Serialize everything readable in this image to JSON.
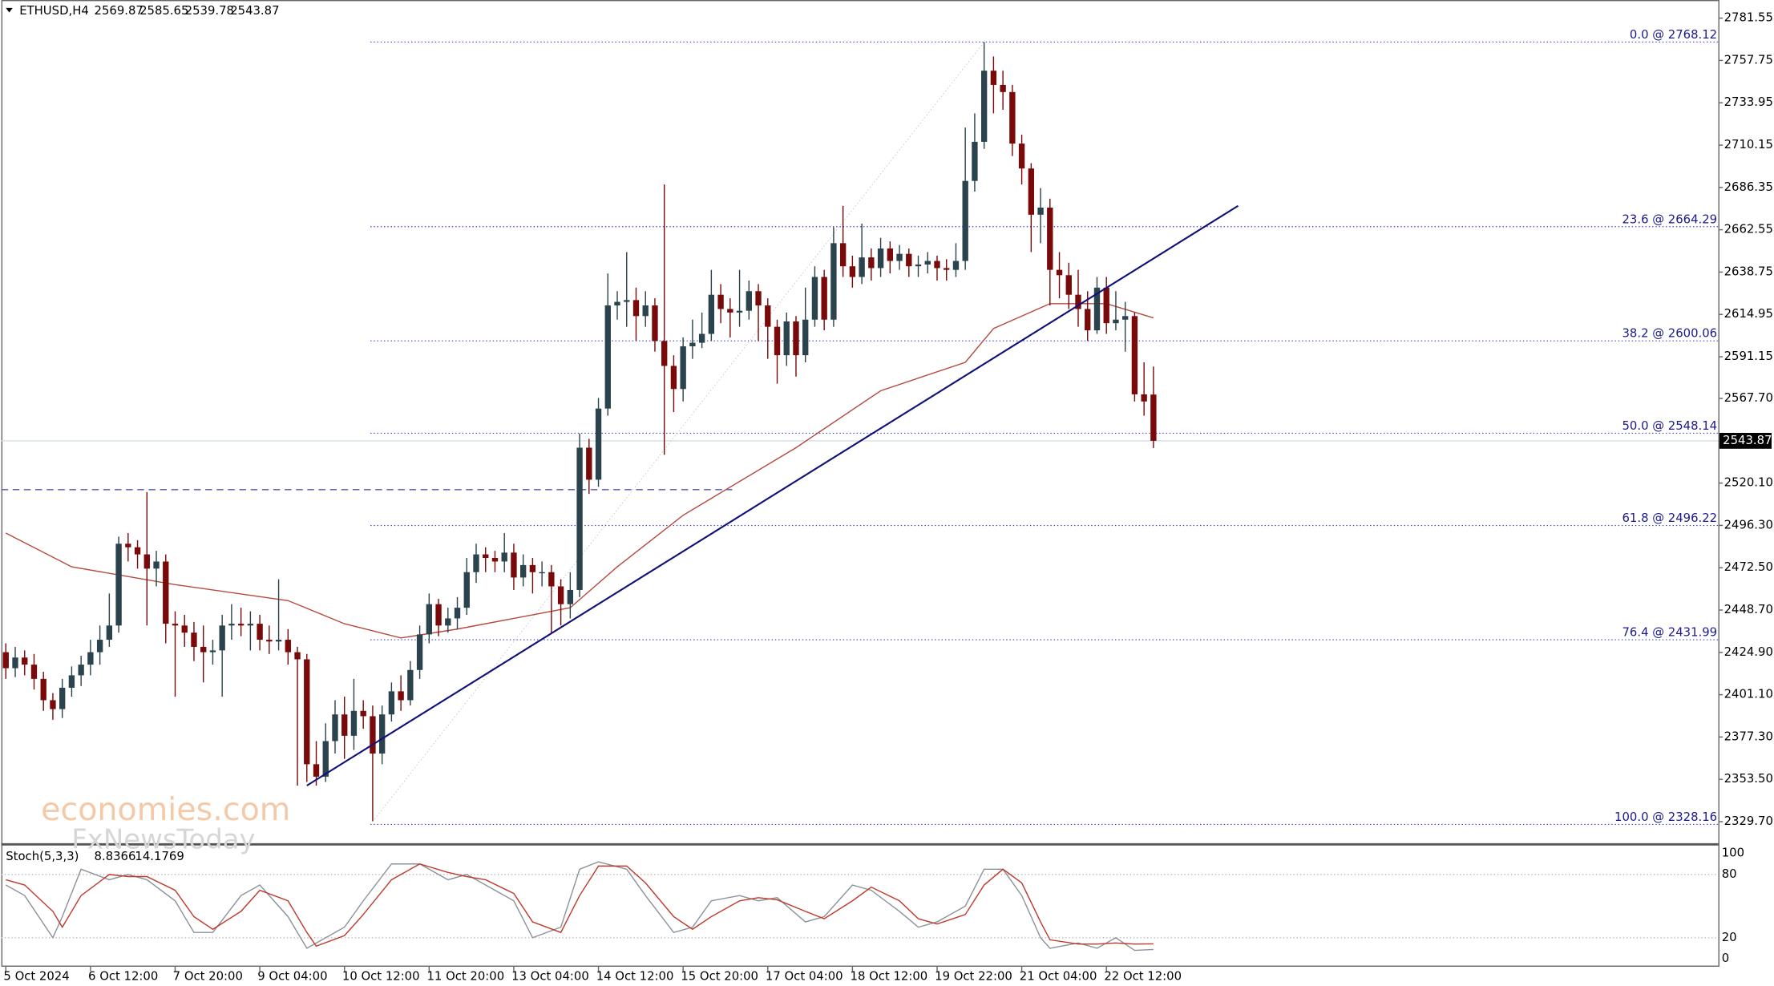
{
  "chart_data": {
    "type": "candlestick",
    "symbol": "ETHUSD,H4",
    "categories": [
      "5 Oct 2024",
      null,
      null,
      null,
      null,
      null,
      null,
      null,
      null,
      "6 Oct 12:00",
      null,
      null,
      null,
      null,
      null,
      null,
      null,
      null,
      "7 Oct 20:00",
      null,
      null,
      null,
      null,
      null,
      null,
      null,
      null,
      "9 Oct 04:00",
      null,
      null,
      null,
      null,
      null,
      null,
      null,
      null,
      "10 Oct 12:00",
      null,
      null,
      null,
      null,
      null,
      null,
      null,
      null,
      "11 Oct 20:00",
      null,
      null,
      null,
      null,
      null,
      null,
      null,
      null,
      "13 Oct 04:00",
      null,
      null,
      null,
      null,
      null,
      null,
      null,
      null,
      "14 Oct 12:00",
      null,
      null,
      null,
      null,
      null,
      null,
      null,
      null,
      "15 Oct 20:00",
      null,
      null,
      null,
      null,
      null,
      null,
      null,
      null,
      "17 Oct 04:00",
      null,
      null,
      null,
      null,
      null,
      null,
      null,
      null,
      "18 Oct 12:00",
      null,
      null,
      null,
      null,
      null,
      null,
      null,
      null,
      "19 Oct 22:00",
      null,
      null,
      null,
      null,
      null,
      null,
      null,
      null,
      "21 Oct 04:00",
      null,
      null,
      null,
      null,
      null,
      null,
      null,
      null,
      "22 Oct 12:00",
      null,
      null,
      null,
      null,
      null
    ],
    "open": [
      2425,
      2416,
      2422,
      2418,
      2410,
      2398,
      2393,
      2405,
      2412,
      2418,
      2425,
      2432,
      2440,
      2486,
      2484,
      2480,
      2472,
      2476,
      2441,
      2440,
      2436,
      2428,
      2425,
      2426,
      2440,
      2441,
      2440,
      2441,
      2432,
      2431,
      2432,
      2425,
      2421,
      2362,
      2355,
      2375,
      2390,
      2378,
      2392,
      2389,
      2368,
      2390,
      2403,
      2398,
      2415,
      2435,
      2452,
      2440,
      2444,
      2450,
      2470,
      2480,
      2478,
      2476,
      2481,
      2467,
      2474,
      2470,
      2470,
      2462,
      2452,
      2460,
      2540,
      2522,
      2562,
      2620,
      2622,
      2623,
      2614,
      2620,
      2600,
      2586,
      2573,
      2597,
      2599,
      2604,
      2626,
      2618,
      2616,
      2617,
      2628,
      2620,
      2608,
      2592,
      2611,
      2592,
      2612,
      2636,
      2612,
      2655,
      2642,
      2636,
      2647,
      2641,
      2652,
      2645,
      2649,
      2642,
      2643,
      2645,
      2641,
      2640,
      2645,
      2690,
      2712,
      2752,
      2744,
      2740,
      2711,
      2697,
      2671,
      2675,
      2640,
      2637,
      2626,
      2618,
      2606,
      2630,
      2610,
      2612,
      2614,
      2570,
      2569.87
    ],
    "high": [
      2430,
      2428,
      2426,
      2424,
      2414,
      2402,
      2410,
      2417,
      2423,
      2432,
      2440,
      2458,
      2490,
      2492,
      2488,
      2515,
      2482,
      2480,
      2448,
      2446,
      2442,
      2440,
      2432,
      2446,
      2452,
      2450,
      2448,
      2446,
      2440,
      2466,
      2438,
      2428,
      2424,
      2375,
      2385,
      2398,
      2400,
      2410,
      2398,
      2395,
      2395,
      2408,
      2412,
      2420,
      2440,
      2458,
      2455,
      2450,
      2456,
      2478,
      2486,
      2484,
      2482,
      2492,
      2486,
      2480,
      2478,
      2476,
      2474,
      2466,
      2470,
      2548,
      2545,
      2568,
      2638,
      2628,
      2650,
      2630,
      2628,
      2624,
      2688,
      2592,
      2602,
      2612,
      2616,
      2640,
      2632,
      2624,
      2640,
      2634,
      2632,
      2624,
      2612,
      2616,
      2614,
      2630,
      2642,
      2640,
      2664,
      2676,
      2648,
      2666,
      2652,
      2658,
      2656,
      2654,
      2652,
      2648,
      2650,
      2648,
      2646,
      2655,
      2720,
      2728,
      2768,
      2760,
      2752,
      2744,
      2716,
      2700,
      2686,
      2680,
      2650,
      2644,
      2640,
      2628,
      2636,
      2636,
      2628,
      2622,
      2616,
      2588,
      2585.65
    ],
    "low": [
      2410,
      2411,
      2412,
      2404,
      2392,
      2387,
      2388,
      2400,
      2406,
      2412,
      2418,
      2428,
      2436,
      2476,
      2472,
      2440,
      2462,
      2430,
      2400,
      2428,
      2420,
      2408,
      2418,
      2400,
      2432,
      2434,
      2426,
      2426,
      2424,
      2426,
      2418,
      2350,
      2352,
      2350,
      2352,
      2368,
      2365,
      2370,
      2382,
      2330,
      2362,
      2386,
      2392,
      2395,
      2410,
      2430,
      2434,
      2436,
      2438,
      2446,
      2464,
      2470,
      2470,
      2470,
      2460,
      2462,
      2458,
      2462,
      2436,
      2440,
      2444,
      2456,
      2514,
      2518,
      2558,
      2612,
      2608,
      2600,
      2608,
      2594,
      2536,
      2560,
      2566,
      2590,
      2596,
      2600,
      2610,
      2602,
      2608,
      2612,
      2600,
      2590,
      2576,
      2586,
      2580,
      2588,
      2608,
      2606,
      2608,
      2636,
      2630,
      2632,
      2634,
      2636,
      2638,
      2640,
      2636,
      2636,
      2638,
      2634,
      2634,
      2636,
      2640,
      2684,
      2708,
      2728,
      2730,
      2704,
      2688,
      2650,
      2655,
      2620,
      2624,
      2618,
      2608,
      2600,
      2604,
      2604,
      2606,
      2594,
      2566,
      2558,
      2539.78
    ],
    "close": [
      2416,
      2422,
      2418,
      2410,
      2398,
      2393,
      2405,
      2412,
      2418,
      2425,
      2432,
      2440,
      2486,
      2484,
      2480,
      2472,
      2476,
      2441,
      2440,
      2436,
      2428,
      2425,
      2426,
      2440,
      2441,
      2440,
      2441,
      2432,
      2431,
      2432,
      2425,
      2421,
      2362,
      2355,
      2375,
      2390,
      2378,
      2392,
      2389,
      2368,
      2390,
      2403,
      2398,
      2415,
      2435,
      2452,
      2440,
      2444,
      2450,
      2470,
      2480,
      2478,
      2476,
      2481,
      2467,
      2474,
      2470,
      2470,
      2462,
      2452,
      2460,
      2540,
      2522,
      2562,
      2620,
      2622,
      2623,
      2614,
      2620,
      2600,
      2586,
      2573,
      2597,
      2599,
      2604,
      2626,
      2618,
      2616,
      2617,
      2628,
      2620,
      2608,
      2592,
      2611,
      2592,
      2612,
      2636,
      2612,
      2655,
      2642,
      2636,
      2647,
      2641,
      2652,
      2645,
      2649,
      2642,
      2643,
      2645,
      2641,
      2640,
      2645,
      2690,
      2712,
      2752,
      2744,
      2740,
      2711,
      2697,
      2671,
      2675,
      2640,
      2637,
      2626,
      2618,
      2606,
      2630,
      2610,
      2612,
      2614,
      2570,
      2566,
      2543.87
    ],
    "up_color": "#2b434c",
    "down_color": "#7a0a0a",
    "ylim": [
      2329.7,
      2781.55
    ],
    "yticks": [
      2781.55,
      2757.75,
      2733.95,
      2710.15,
      2686.35,
      2662.55,
      2638.75,
      2614.95,
      2591.15,
      {
        "value": 2567.7,
        "label": "2567.70"
      },
      {
        "value": 2520.1,
        "label": "2520.10"
      },
      {
        "value": 2496.3,
        "label": "2496.30"
      },
      {
        "value": 2472.5,
        "label": "2472.50"
      },
      {
        "value": 2448.7,
        "label": "2448.70"
      },
      {
        "value": 2424.9,
        "label": "2424.90"
      },
      {
        "value": 2401.1,
        "label": "2401.10"
      },
      {
        "value": 2377.3,
        "label": "2377.30"
      },
      {
        "value": 2353.5,
        "label": "2353.50"
      },
      {
        "value": 2329.7,
        "label": "2329.70"
      }
    ],
    "fib_levels": [
      {
        "value": 2768.12,
        "label": "0.0 @ 2768.12"
      },
      {
        "value": 2664.29,
        "label": "23.6 @ 2664.29"
      },
      {
        "value": 2600.06,
        "label": "38.2 @ 2600.06"
      },
      {
        "value": 2548.14,
        "label": "50.0 @ 2548.14"
      },
      {
        "value": 2496.22,
        "label": "61.8 @ 2496.22"
      },
      {
        "value": 2431.99,
        "label": "76.4 @ 2431.99"
      },
      {
        "value": 2328.16,
        "label": "100.0 @ 2328.16"
      }
    ],
    "fib_color": "#3a3ad0",
    "dashed_level": 2516.4,
    "ma": {
      "color": "#b54a3e",
      "x": [
        0,
        7,
        18,
        30,
        36,
        42,
        48,
        54,
        60,
        65,
        72,
        84,
        93,
        102,
        105,
        111,
        117,
        122
      ],
      "values": [
        2492,
        2473,
        2463,
        2454,
        2441,
        2433,
        2438,
        2444,
        2450,
        2473,
        2502,
        2540,
        2572,
        2588,
        2607,
        2621,
        2621,
        2613
      ]
    },
    "trendline": {
      "color": "#10107a",
      "x": [
        32,
        131
      ],
      "values": [
        2350,
        2676
      ]
    },
    "stoch": {
      "title": "Stoch(5,3,3)",
      "ylim": [
        0,
        100
      ],
      "yticks": [
        100,
        80,
        20,
        0
      ],
      "x": [
        0,
        2,
        5,
        6,
        8,
        11,
        13,
        15,
        18,
        20,
        22,
        25,
        27,
        30,
        32,
        33,
        36,
        38,
        41,
        44,
        47,
        49,
        51,
        54,
        56,
        59,
        61,
        63,
        66,
        68,
        71,
        73,
        75,
        78,
        80,
        82,
        85,
        87,
        90,
        92,
        95,
        97,
        99,
        102,
        104,
        106,
        108,
        110,
        111,
        114,
        116,
        118,
        120,
        122
      ],
      "series": [
        {
          "color": "#8a939a",
          "values": [
            70,
            60,
            20,
            40,
            85,
            75,
            80,
            75,
            55,
            25,
            25,
            60,
            70,
            40,
            10,
            15,
            30,
            55,
            90,
            90,
            75,
            80,
            70,
            55,
            20,
            30,
            85,
            92,
            85,
            60,
            25,
            30,
            55,
            60,
            55,
            58,
            35,
            40,
            70,
            65,
            45,
            30,
            35,
            50,
            85,
            85,
            60,
            20,
            10,
            15,
            10,
            20,
            8,
            8.8366
          ]
        },
        {
          "color": "#c0392b",
          "values": [
            75,
            70,
            45,
            30,
            60,
            80,
            78,
            78,
            65,
            40,
            28,
            45,
            65,
            55,
            25,
            12,
            22,
            42,
            75,
            90,
            82,
            78,
            75,
            62,
            35,
            25,
            60,
            88,
            88,
            72,
            40,
            28,
            40,
            55,
            58,
            56,
            45,
            38,
            55,
            68,
            55,
            38,
            33,
            42,
            70,
            85,
            72,
            35,
            18,
            14,
            14,
            15,
            14,
            14.1769
          ]
        }
      ]
    },
    "watermark": [
      "economies.com",
      "FxNewsToday"
    ]
  }
}
